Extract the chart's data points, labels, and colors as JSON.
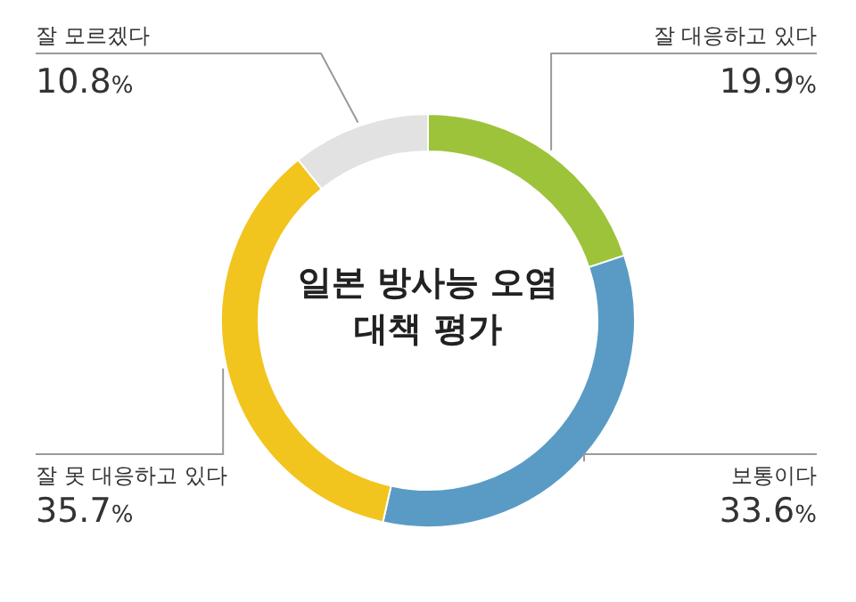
{
  "chart_data": {
    "type": "donut",
    "title": "일본 방사능 오염 대책 평가",
    "categories": [
      "잘 대응하고 있다",
      "보통이다",
      "잘 못 대응하고 있다",
      "잘 모르겠다"
    ],
    "values": [
      19.9,
      33.6,
      35.7,
      10.8
    ],
    "colors": [
      "#9dc33b",
      "#5a9bc5",
      "#f2c41e",
      "#e2e2e2"
    ],
    "value_labels": [
      "19.9%",
      "33.6%",
      "35.7%",
      "10.8%"
    ]
  }
}
